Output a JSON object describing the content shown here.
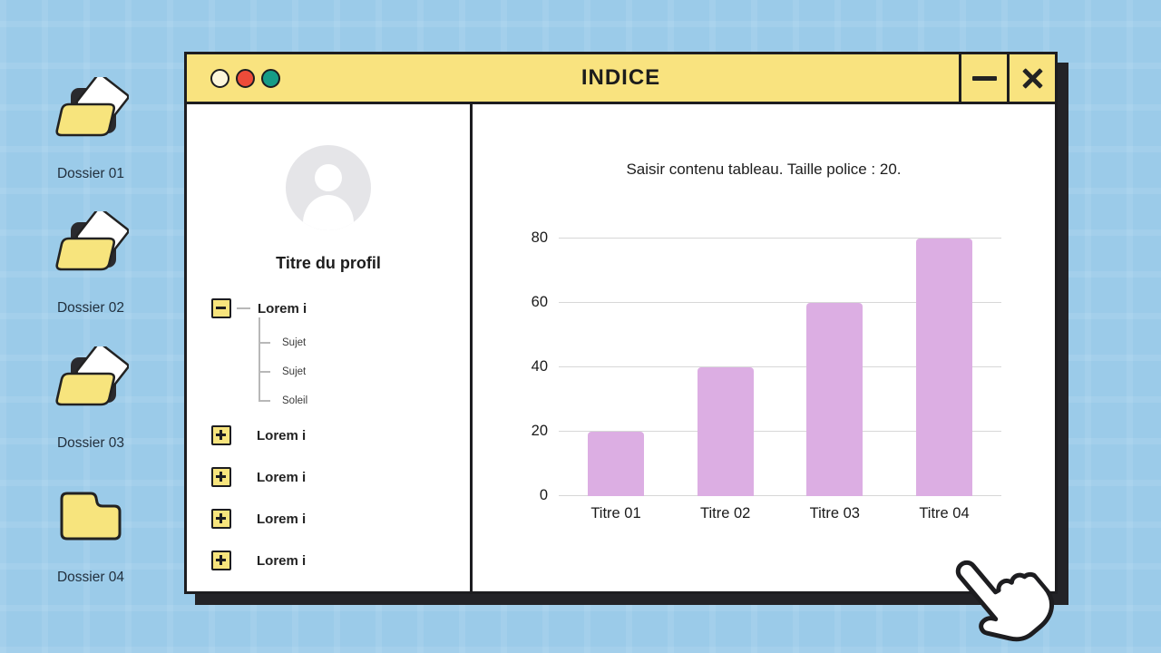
{
  "desktop": {
    "folders": [
      {
        "label": "Dossier 01",
        "icon": "open-folder-icon"
      },
      {
        "label": "Dossier 02",
        "icon": "open-folder-icon"
      },
      {
        "label": "Dossier 03",
        "icon": "open-folder-icon"
      },
      {
        "label": "Dossier 04",
        "icon": "closed-folder-icon"
      }
    ]
  },
  "window": {
    "title": "INDICE",
    "traffic_lights": [
      {
        "name": "light-cream",
        "color": "#fdf6da"
      },
      {
        "name": "light-red",
        "color": "#ee4b39"
      },
      {
        "name": "light-teal",
        "color": "#169c87"
      }
    ],
    "controls": {
      "minimize": "minimize-button",
      "close": "close-button"
    }
  },
  "profile": {
    "title": "Titre du profil",
    "avatar_icon": "person-icon"
  },
  "tree": {
    "items": [
      {
        "label": "Lorem i",
        "state": "expanded",
        "children": [
          "Sujet",
          "Sujet",
          "Soleil"
        ]
      },
      {
        "label": "Lorem i",
        "state": "collapsed",
        "children": []
      },
      {
        "label": "Lorem i",
        "state": "collapsed",
        "children": []
      },
      {
        "label": "Lorem i",
        "state": "collapsed",
        "children": []
      },
      {
        "label": "Lorem i",
        "state": "collapsed",
        "children": []
      }
    ]
  },
  "chart_data": {
    "type": "bar",
    "title": "Saisir contenu tableau. Taille police : 20.",
    "categories": [
      "Titre 01",
      "Titre 02",
      "Titre 03",
      "Titre 04"
    ],
    "values": [
      20,
      40,
      60,
      80
    ],
    "yticks": [
      0,
      20,
      40,
      60,
      80
    ],
    "ylim": [
      0,
      80
    ],
    "xlabel": "",
    "ylabel": "",
    "grid": true,
    "legend": false,
    "bar_color": "#dcaee3",
    "gridline_color": "#d7d7d7"
  },
  "cursor": "hand-pointer-icon",
  "colors": {
    "background_blue": "#9bcbe9",
    "window_yellow": "#f9e37f",
    "folder_yellow": "#f7e47d",
    "border_dark": "#1d1d20",
    "shadow_dark": "#232327",
    "bar_pink": "#dcaee3"
  }
}
